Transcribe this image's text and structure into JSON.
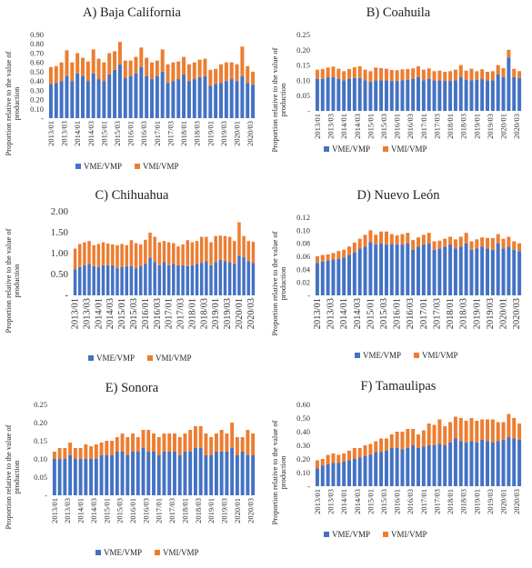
{
  "colors": {
    "vme": "#4472C4",
    "vmi": "#ED7D31"
  },
  "y_title": [
    "Proportion relative to the value of",
    "production"
  ],
  "legend": [
    "VME/VMP",
    "VMI/VMP"
  ],
  "x_tick_labels": [
    "2013/01",
    "2013/03",
    "2014/01",
    "2014/03",
    "2015/01",
    "2015/03",
    "2016/01",
    "2016/03",
    "2017/01",
    "2017/03",
    "2018/01",
    "2018/03",
    "2019/01",
    "2019/03",
    "2020/01",
    "2020/03"
  ],
  "chart_data": [
    {
      "type": "bar",
      "stacked": true,
      "title": "A)  Baja California",
      "ylim": [
        0,
        0.9
      ],
      "yticks": [
        "-",
        "0.10",
        "0.20",
        "0.30",
        "0.40",
        "0.50",
        "0.60",
        "0.70",
        "0.80",
        "0.90"
      ],
      "series": [
        {
          "name": "VME/VMP",
          "values": [
            0.37,
            0.38,
            0.4,
            0.45,
            0.4,
            0.48,
            0.45,
            0.4,
            0.48,
            0.42,
            0.4,
            0.47,
            0.52,
            0.58,
            0.43,
            0.45,
            0.48,
            0.55,
            0.45,
            0.42,
            0.45,
            0.5,
            0.38,
            0.4,
            0.42,
            0.47,
            0.4,
            0.42,
            0.44,
            0.45,
            0.35,
            0.37,
            0.38,
            0.4,
            0.42,
            0.4,
            0.45,
            0.38,
            0.36
          ]
        },
        {
          "name": "VMI/VMP",
          "values": [
            0.18,
            0.18,
            0.2,
            0.28,
            0.2,
            0.22,
            0.2,
            0.21,
            0.26,
            0.22,
            0.2,
            0.23,
            0.2,
            0.24,
            0.19,
            0.17,
            0.18,
            0.21,
            0.2,
            0.18,
            0.17,
            0.24,
            0.2,
            0.2,
            0.19,
            0.19,
            0.18,
            0.18,
            0.19,
            0.19,
            0.17,
            0.16,
            0.2,
            0.2,
            0.18,
            0.18,
            0.32,
            0.18,
            0.14
          ]
        }
      ]
    },
    {
      "type": "bar",
      "stacked": true,
      "title": "B) Coahuila",
      "ylim": [
        0,
        0.25
      ],
      "yticks": [
        "-",
        "0.05",
        "0.10",
        "0.15",
        "0.20",
        "0.25"
      ],
      "series": [
        {
          "name": "VME/VMP",
          "values": [
            0.105,
            0.105,
            0.11,
            0.11,
            0.105,
            0.1,
            0.105,
            0.108,
            0.108,
            0.1,
            0.095,
            0.1,
            0.1,
            0.1,
            0.098,
            0.098,
            0.1,
            0.102,
            0.105,
            0.11,
            0.1,
            0.105,
            0.1,
            0.1,
            0.098,
            0.098,
            0.1,
            0.11,
            0.102,
            0.1,
            0.102,
            0.104,
            0.1,
            0.1,
            0.12,
            0.11,
            0.175,
            0.11,
            0.108
          ]
        },
        {
          "name": "VMI/VMP",
          "values": [
            0.03,
            0.032,
            0.032,
            0.035,
            0.033,
            0.03,
            0.032,
            0.035,
            0.038,
            0.035,
            0.035,
            0.042,
            0.04,
            0.038,
            0.036,
            0.035,
            0.036,
            0.035,
            0.034,
            0.036,
            0.035,
            0.034,
            0.03,
            0.032,
            0.03,
            0.032,
            0.035,
            0.04,
            0.03,
            0.038,
            0.028,
            0.032,
            0.028,
            0.03,
            0.03,
            0.03,
            0.025,
            0.028,
            0.022
          ]
        }
      ]
    },
    {
      "type": "bar",
      "stacked": true,
      "title": "C)  Chihuahua",
      "ylim": [
        0,
        2.0
      ],
      "yticks": [
        "-",
        "0.50",
        "1.00",
        "1.50",
        "2.00"
      ],
      "series": [
        {
          "name": "VME/VMP",
          "values": [
            0.62,
            0.68,
            0.72,
            0.75,
            0.7,
            0.68,
            0.72,
            0.72,
            0.72,
            0.65,
            0.68,
            0.7,
            0.7,
            0.65,
            0.7,
            0.75,
            0.9,
            0.8,
            0.72,
            0.8,
            0.72,
            0.75,
            0.72,
            0.72,
            0.7,
            0.72,
            0.75,
            0.78,
            0.82,
            0.72,
            0.8,
            0.85,
            0.82,
            0.8,
            0.75,
            0.95,
            0.92,
            0.82,
            0.78
          ]
        },
        {
          "name": "VMI/VMP",
          "values": [
            0.5,
            0.55,
            0.55,
            0.55,
            0.5,
            0.55,
            0.55,
            0.52,
            0.5,
            0.55,
            0.55,
            0.5,
            0.62,
            0.6,
            0.52,
            0.58,
            0.6,
            0.6,
            0.55,
            0.5,
            0.55,
            0.5,
            0.45,
            0.5,
            0.62,
            0.55,
            0.55,
            0.62,
            0.58,
            0.55,
            0.62,
            0.58,
            0.6,
            0.6,
            0.55,
            0.8,
            0.5,
            0.48,
            0.5
          ]
        }
      ]
    },
    {
      "type": "bar",
      "stacked": true,
      "title": "D) Nuevo León",
      "ylim": [
        0,
        0.12
      ],
      "yticks": [
        "-",
        "0.02",
        "0.04",
        "0.06",
        "0.08",
        "0.10",
        "0.12"
      ],
      "series": [
        {
          "name": "VME/VMP",
          "values": [
            0.05,
            0.052,
            0.053,
            0.055,
            0.056,
            0.058,
            0.062,
            0.066,
            0.072,
            0.075,
            0.082,
            0.078,
            0.08,
            0.078,
            0.079,
            0.078,
            0.078,
            0.08,
            0.07,
            0.075,
            0.078,
            0.08,
            0.07,
            0.072,
            0.075,
            0.078,
            0.072,
            0.075,
            0.08,
            0.07,
            0.072,
            0.075,
            0.072,
            0.07,
            0.08,
            0.072,
            0.075,
            0.07,
            0.068
          ]
        },
        {
          "name": "VMI/VMP",
          "values": [
            0.01,
            0.01,
            0.01,
            0.01,
            0.012,
            0.012,
            0.013,
            0.015,
            0.015,
            0.018,
            0.018,
            0.015,
            0.018,
            0.02,
            0.015,
            0.014,
            0.016,
            0.016,
            0.015,
            0.014,
            0.015,
            0.016,
            0.013,
            0.012,
            0.012,
            0.012,
            0.014,
            0.015,
            0.016,
            0.013,
            0.014,
            0.014,
            0.016,
            0.018,
            0.014,
            0.015,
            0.015,
            0.013,
            0.012
          ]
        }
      ]
    },
    {
      "type": "bar",
      "stacked": true,
      "title": "E)  Sonora",
      "ylim": [
        0,
        0.25
      ],
      "yticks": [
        "-",
        "0.05",
        "0.10",
        "0.15",
        "0.20",
        "0.25"
      ],
      "series": [
        {
          "name": "VME/VMP",
          "values": [
            0.1,
            0.1,
            0.1,
            0.11,
            0.1,
            0.1,
            0.1,
            0.1,
            0.1,
            0.11,
            0.11,
            0.11,
            0.12,
            0.12,
            0.11,
            0.12,
            0.12,
            0.13,
            0.12,
            0.12,
            0.11,
            0.12,
            0.12,
            0.12,
            0.11,
            0.12,
            0.12,
            0.13,
            0.13,
            0.11,
            0.11,
            0.12,
            0.12,
            0.12,
            0.13,
            0.11,
            0.12,
            0.11,
            0.11
          ]
        },
        {
          "name": "VMI/VMP",
          "values": [
            0.02,
            0.03,
            0.03,
            0.035,
            0.03,
            0.03,
            0.04,
            0.035,
            0.04,
            0.035,
            0.04,
            0.04,
            0.04,
            0.05,
            0.05,
            0.05,
            0.04,
            0.05,
            0.06,
            0.05,
            0.05,
            0.05,
            0.05,
            0.05,
            0.05,
            0.05,
            0.06,
            0.06,
            0.06,
            0.06,
            0.05,
            0.05,
            0.06,
            0.05,
            0.07,
            0.05,
            0.04,
            0.07,
            0.06
          ]
        }
      ]
    },
    {
      "type": "bar",
      "stacked": true,
      "title": "F) Tamaulipas",
      "ylim": [
        0,
        0.6
      ],
      "yticks": [
        "-",
        "0.10",
        "0.20",
        "0.30",
        "0.40",
        "0.50",
        "0.60"
      ],
      "series": [
        {
          "name": "VME/VMP",
          "values": [
            0.13,
            0.15,
            0.16,
            0.17,
            0.17,
            0.18,
            0.19,
            0.2,
            0.21,
            0.22,
            0.23,
            0.25,
            0.25,
            0.26,
            0.28,
            0.28,
            0.27,
            0.28,
            0.3,
            0.28,
            0.29,
            0.3,
            0.3,
            0.31,
            0.3,
            0.32,
            0.35,
            0.33,
            0.32,
            0.33,
            0.32,
            0.34,
            0.33,
            0.32,
            0.33,
            0.34,
            0.36,
            0.35,
            0.34
          ]
        },
        {
          "name": "VMI/VMP",
          "values": [
            0.06,
            0.05,
            0.07,
            0.07,
            0.06,
            0.06,
            0.07,
            0.08,
            0.07,
            0.08,
            0.08,
            0.08,
            0.1,
            0.09,
            0.1,
            0.12,
            0.13,
            0.14,
            0.12,
            0.1,
            0.12,
            0.16,
            0.15,
            0.18,
            0.14,
            0.15,
            0.16,
            0.17,
            0.16,
            0.17,
            0.16,
            0.15,
            0.16,
            0.17,
            0.14,
            0.13,
            0.17,
            0.15,
            0.12
          ]
        }
      ]
    }
  ]
}
